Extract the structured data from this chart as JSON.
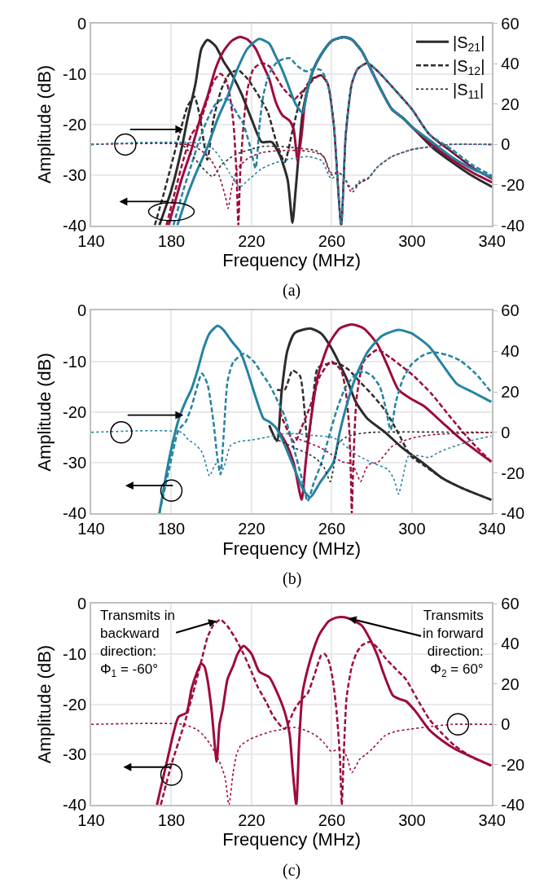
{
  "chart_data": [
    {
      "type": "line",
      "title": "(a)",
      "xlabel": "Frequency (MHz)",
      "ylabel": "Amplitude (dB)",
      "xlim": [
        140,
        340
      ],
      "xticks": [
        140,
        180,
        220,
        260,
        300,
        340
      ],
      "ylim": [
        -40,
        0
      ],
      "yticks": [
        -40,
        -30,
        -20,
        -10,
        0
      ],
      "y2lim": [
        -40,
        60
      ],
      "y2ticks": [
        -40,
        -20,
        0,
        20,
        40,
        60
      ],
      "grid": true,
      "legend": "top right",
      "series": [
        {
          "name": "|S$_{21}$|",
          "color": "#2b2b2b",
          "line_style": "solid",
          "x": [
            174,
            180,
            185,
            188,
            192,
            195,
            198,
            202,
            206,
            210,
            215,
            220,
            225,
            230,
            234,
            238,
            240.4,
            242,
            245.4,
            248,
            251,
            255,
            260,
            266,
            270,
            275,
            280,
            285,
            290,
            295.6,
            300,
            310,
            320,
            330,
            340
          ],
          "values": [
            -40,
            -33,
            -25,
            -19,
            -12,
            -5,
            -3.3,
            -4.5,
            -7.5,
            -10,
            -14,
            -19,
            -23.5,
            -23.5,
            -26,
            -31,
            -39.5,
            -33,
            -18,
            -13,
            -9,
            -6,
            -3.5,
            -2.7,
            -3.2,
            -5.5,
            -9.5,
            -13.5,
            -17,
            -18.8,
            -20.5,
            -24.5,
            -27.5,
            -30.2,
            -32.4
          ]
        },
        {
          "name": "|S$_{12}$|",
          "color": "#2b2b2b",
          "line_style": "dashed",
          "x": [
            171.7,
            176,
            180,
            184,
            188,
            191.4,
            194,
            197.9,
            201,
            205,
            209,
            213.4,
            218,
            223,
            228,
            232,
            236.5,
            240,
            243,
            245.4,
            248,
            251,
            254.7,
            258,
            261,
            264.7,
            267,
            270,
            273,
            277.8,
            283,
            290,
            300,
            308.7,
            320,
            330,
            340
          ],
          "values": [
            -40,
            -34,
            -28,
            -22,
            -16.5,
            -14.5,
            -18,
            -27,
            -19,
            -13,
            -10,
            -9.3,
            -11,
            -14,
            -17.5,
            -23,
            -27.5,
            -22,
            -17,
            -14,
            -12,
            -10.8,
            -10.3,
            -12,
            -20,
            -40,
            -22,
            -12,
            -9,
            -7.9,
            -9.5,
            -12.5,
            -17,
            -22,
            -25.5,
            -28.5,
            -30.8
          ]
        },
        {
          "name": "|S$_{11}$|",
          "color": "#2b2b2b",
          "line_style": "dotted",
          "axis": "y2",
          "x": [
            140,
            185,
            190,
            195,
            200.6,
            205,
            212,
            225,
            235,
            245,
            252,
            256,
            259.7,
            263.6,
            266,
            270,
            274,
            278,
            283,
            290,
            300,
            310,
            318.8,
            340
          ],
          "values": [
            0,
            0,
            -5,
            -11,
            -15.9,
            -10,
            -5,
            -1,
            -1,
            -2,
            -3,
            -6,
            -15,
            -14,
            -16,
            -22,
            -19,
            -17,
            -11,
            -6,
            -2.5,
            -1,
            0,
            0
          ]
        },
        {
          "color": "#9e0a3c",
          "line_style": "solid",
          "x": [
            178.6,
            185,
            190,
            195,
            198,
            202,
            206,
            210,
            214,
            218,
            222,
            226,
            228.8,
            232,
            235.4,
            239,
            241,
            243,
            245,
            246.5,
            248,
            251,
            255,
            260,
            266,
            270,
            275,
            280,
            285,
            290,
            295.6,
            300,
            310,
            320,
            330,
            340
          ],
          "values": [
            -40,
            -31,
            -25,
            -18,
            -14.5,
            -9,
            -5.5,
            -3.5,
            -2.7,
            -3.2,
            -5,
            -8.5,
            -11,
            -15.5,
            -18.2,
            -19.3,
            -21,
            -27.3,
            -22,
            -16,
            -13,
            -9,
            -6,
            -3.5,
            -2.7,
            -3.2,
            -5.5,
            -9.5,
            -13.5,
            -17,
            -18.8,
            -20.5,
            -24,
            -27,
            -29.5,
            -31.5
          ]
        },
        {
          "color": "#9e0a3c",
          "line_style": "dashed",
          "x": [
            177.5,
            182,
            186,
            190,
            194,
            198,
            201,
            204.5,
            207,
            209,
            211,
            212.5,
            213.4,
            214.3,
            216,
            218,
            221,
            225,
            228.8,
            232,
            236,
            241.5,
            244,
            248,
            251,
            254.7,
            258,
            261,
            264.7,
            267,
            270,
            273,
            277.8,
            283,
            290,
            300,
            308.7,
            320,
            330,
            340
          ],
          "values": [
            -40,
            -33,
            -27,
            -22,
            -19.8,
            -15,
            -11.5,
            -10,
            -11,
            -14,
            -20,
            -30,
            -40,
            -30,
            -20,
            -13,
            -9,
            -7.9,
            -8.5,
            -10.5,
            -13,
            -15,
            -14,
            -12.5,
            -11,
            -10.3,
            -12,
            -20,
            -40,
            -22,
            -12,
            -9,
            -7.9,
            -9.5,
            -12.5,
            -17,
            -22,
            -25.5,
            -28.5,
            -30.8
          ]
        },
        {
          "color": "#9e0a3c",
          "line_style": "dotted",
          "axis": "y2",
          "x": [
            140,
            188,
            195,
            200,
            204,
            207,
            208.3,
            210,
            213,
            218,
            225,
            235,
            245,
            252,
            256,
            259.7,
            263.6,
            266,
            270,
            274,
            278,
            283,
            290,
            300,
            310,
            318.8,
            340
          ],
          "values": [
            0,
            0,
            -3,
            -8,
            -16,
            -26,
            -31.7,
            -22,
            -12,
            -7,
            -4,
            -3,
            -3,
            -4,
            -6,
            -14,
            -14,
            -16,
            -23.8,
            -19,
            -17,
            -11,
            -6,
            -2.5,
            -1,
            0,
            0
          ]
        },
        {
          "color": "#2483a0",
          "line_style": "solid",
          "x": [
            183,
            188,
            193,
            198,
            203,
            208,
            213,
            218,
            223.8,
            228.8,
            232,
            235.4,
            239,
            242,
            245.4,
            248,
            251,
            255,
            260,
            266,
            270,
            275,
            280,
            285,
            290,
            295.6,
            300,
            310,
            320,
            330,
            340
          ],
          "values": [
            -40,
            -34,
            -29,
            -24.5,
            -19,
            -14.5,
            -9,
            -5,
            -3.1,
            -4,
            -6.5,
            -9.3,
            -13,
            -16,
            -17.7,
            -13,
            -9,
            -6,
            -3.5,
            -2.7,
            -3.2,
            -5.5,
            -9.5,
            -13.5,
            -17,
            -18.8,
            -20.5,
            -23.5,
            -26.5,
            -28.8,
            -30.5
          ]
        },
        {
          "color": "#2483a0",
          "line_style": "dashed",
          "x": [
            181,
            186,
            190,
            194,
            198,
            202,
            205.6,
            208,
            210,
            213,
            216,
            219,
            222,
            224,
            226,
            228.8,
            232,
            235,
            239,
            243,
            247,
            251,
            254.7,
            258,
            261,
            264.7,
            267,
            270,
            273,
            277.8,
            283,
            290,
            300,
            308.7,
            320,
            330,
            340
          ],
          "values": [
            -40,
            -33,
            -28,
            -23,
            -19,
            -16,
            -15,
            -15,
            -16,
            -18,
            -20,
            -24,
            -28.7,
            -20,
            -14,
            -10,
            -8,
            -7.2,
            -6.9,
            -8.5,
            -9.5,
            -9,
            -9.3,
            -12,
            -20,
            -40,
            -22,
            -12,
            -9,
            -7.9,
            -9.5,
            -12.5,
            -17,
            -22,
            -25,
            -28,
            -30.2
          ]
        },
        {
          "color": "#2483a0",
          "line_style": "dotted",
          "axis": "y2",
          "x": [
            140,
            198,
            204,
            209,
            214,
            219,
            225,
            232,
            240,
            248,
            255,
            259.7,
            263.6,
            266,
            270,
            274,
            278,
            283,
            290,
            300,
            310,
            318.8,
            340
          ],
          "values": [
            0,
            0,
            -6,
            -14,
            -21,
            -17,
            -12,
            -9,
            -7,
            -6,
            -8,
            -17,
            -14,
            -16,
            -22,
            -18,
            -16.5,
            -11,
            -6,
            -2.5,
            -1,
            0,
            0
          ]
        }
      ]
    },
    {
      "type": "line",
      "title": "(b)",
      "xlabel": "Frequency (MHz)",
      "ylabel": "Amplitude (dB)",
      "xlim": [
        140,
        340
      ],
      "xticks": [
        140,
        180,
        220,
        260,
        300,
        340
      ],
      "ylim": [
        -40,
        0
      ],
      "yticks": [
        -40,
        -30,
        -20,
        -10,
        0
      ],
      "y2lim": [
        -40,
        60
      ],
      "y2ticks": [
        -40,
        -20,
        0,
        20,
        40,
        60
      ],
      "grid": true,
      "series": [
        {
          "color": "#2b2b2b",
          "line_style": "solid",
          "x": [
            228.8,
            232.7,
            235,
            237.8,
            241.5,
            249.3,
            254.7,
            260,
            267.4,
            272,
            277.8,
            286.7,
            295,
            306,
            315,
            325,
            339.6
          ],
          "values": [
            -22.6,
            -25.7,
            -16,
            -8,
            -4.4,
            -3.5,
            -4.5,
            -7.5,
            -13.4,
            -18,
            -21.3,
            -24,
            -27,
            -30.2,
            -33,
            -35,
            -37.3
          ]
        },
        {
          "color": "#2b2b2b",
          "line_style": "dashed",
          "x": [
            232.7,
            236.5,
            240.4,
            244.2,
            248,
            250.5,
            253,
            258,
            263.6,
            268,
            274,
            280,
            286.7,
            293,
            299.5,
            306,
            315,
            325,
            339.6
          ],
          "values": [
            -15.6,
            -15.6,
            -11.8,
            -12.9,
            -26.2,
            -18,
            -11.3,
            -10.5,
            -10.5,
            -11.5,
            -14,
            -16.5,
            -19.7,
            -24,
            -28.7,
            -30.5,
            -33,
            -35,
            -37.3
          ]
        },
        {
          "color": "#2b2b2b",
          "line_style": "dotted",
          "axis": "y2",
          "x": [
            231,
            236,
            241.5,
            247,
            252,
            256,
            259.3,
            261.5,
            263.6,
            267,
            271.4,
            280,
            340
          ],
          "values": [
            -3,
            -5,
            -7.7,
            -10,
            -12.8,
            -17,
            -24.3,
            -14,
            -5,
            -2.5,
            -1,
            0,
            0
          ]
        },
        {
          "color": "#9e0a3c",
          "line_style": "solid",
          "x": [
            233,
            237,
            241,
            245,
            247,
            249.3,
            253,
            258.5,
            264,
            270,
            276,
            282.8,
            288,
            293.3,
            300,
            306,
            315,
            325,
            339.6
          ],
          "values": [
            -23.5,
            -26,
            -30,
            -37.3,
            -30,
            -22.4,
            -13,
            -6.6,
            -3.5,
            -2.7,
            -3.5,
            -6.6,
            -11,
            -15.6,
            -17.5,
            -18.8,
            -22,
            -25.5,
            -29.8
          ]
        },
        {
          "color": "#9e0a3c",
          "line_style": "dashed",
          "x": [
            234,
            241.5,
            245,
            249.3,
            254,
            259.7,
            264.7,
            267,
            268.6,
            269.5,
            270,
            270.8,
            272.4,
            276,
            282.8,
            289.4,
            295,
            301,
            310,
            318.8,
            330,
            339.6
          ],
          "values": [
            -20,
            -26,
            -23,
            -18.8,
            -13,
            -10,
            -11.8,
            -16,
            -22.4,
            -32,
            -40,
            -30,
            -17.3,
            -10,
            -7.7,
            -9.3,
            -11,
            -12.9,
            -16.5,
            -20.8,
            -26,
            -29.8
          ]
        },
        {
          "color": "#9e0a3c",
          "line_style": "dotted",
          "axis": "y2",
          "x": [
            241.5,
            248,
            254.7,
            260,
            264.7,
            270,
            272,
            274.4,
            277,
            279,
            283,
            290.6,
            301,
            312,
            340
          ],
          "values": [
            -2.6,
            -5,
            -7.7,
            -11,
            -14.4,
            -15.6,
            -19,
            -24.3,
            -18,
            -15.6,
            -14.8,
            -6.5,
            -2.6,
            -1,
            0
          ]
        },
        {
          "color": "#2483a0",
          "line_style": "solid",
          "x": [
            174,
            179,
            183.6,
            187,
            190,
            193,
            196,
            199,
            203,
            206,
            210,
            214.5,
            218,
            222,
            226,
            228.8,
            232,
            236,
            241.5,
            246,
            249.3,
            254,
            260.8,
            264,
            267.4,
            272,
            277.8,
            285,
            293.3,
            300,
            308.7,
            315,
            322.6,
            330,
            339.6
          ],
          "values": [
            -40,
            -29,
            -21.5,
            -18,
            -15.5,
            -11.8,
            -7.5,
            -4.5,
            -3,
            -3.8,
            -6,
            -8.2,
            -12,
            -17,
            -21.3,
            -21.9,
            -23,
            -26,
            -31.3,
            -35.5,
            -36.8,
            -34,
            -30,
            -24,
            -18.7,
            -13,
            -8.2,
            -5,
            -3.8,
            -4.5,
            -7.1,
            -10.5,
            -14.5,
            -16,
            -18
          ]
        },
        {
          "color": "#2483a0",
          "line_style": "dashed",
          "x": [
            174,
            179,
            183.6,
            187,
            190,
            195.2,
            198,
            201,
            203,
            204.5,
            206,
            208,
            210.8,
            216.1,
            221,
            226,
            228.8,
            232,
            236.5,
            241,
            245,
            248,
            251,
            254.7,
            262.4,
            267,
            272.4,
            276,
            280.2,
            284,
            286.7,
            289.4,
            292,
            295.6,
            300,
            306,
            311,
            318,
            324,
            332,
            339.6
          ],
          "values": [
            -40,
            -31,
            -23.5,
            -22,
            -19,
            -12.4,
            -14.5,
            -22,
            -29.2,
            -32.3,
            -25,
            -14,
            -10.2,
            -8.5,
            -10,
            -12.9,
            -14.5,
            -17,
            -20.8,
            -27,
            -33,
            -37.6,
            -34,
            -30.2,
            -19.7,
            -15,
            -12.4,
            -12,
            -12.9,
            -15,
            -18.8,
            -23.5,
            -18,
            -13.4,
            -10.5,
            -8.7,
            -8.2,
            -8.8,
            -9.8,
            -12.5,
            -16.1
          ]
        },
        {
          "color": "#2483a0",
          "line_style": "dotted",
          "axis": "y2",
          "x": [
            140,
            185,
            188.6,
            192,
            195.2,
            197,
            199,
            202.2,
            205.6,
            209.5,
            214,
            219.6,
            227,
            235,
            241.5,
            250,
            260.8,
            266,
            271.4,
            276,
            281.7,
            288,
            291,
            293.3,
            295.5,
            298.3,
            303,
            308.7,
            313,
            318.8,
            330,
            339.6
          ],
          "values": [
            0,
            0,
            -3.8,
            -6,
            -9.7,
            -15,
            -21.5,
            -15.6,
            -18.3,
            -6.5,
            -4.5,
            -3.8,
            -2.5,
            -0.8,
            -0.6,
            -1.5,
            -2.6,
            -6,
            -10.5,
            -13,
            -15.6,
            -18.3,
            -23,
            -30.5,
            -22,
            -11.7,
            -11.5,
            -12.4,
            -10,
            -7.7,
            -4,
            -1.8
          ]
        }
      ]
    },
    {
      "type": "line",
      "title": "(c)",
      "xlabel": "Frequency (MHz)",
      "ylabel": "Amplitude (dB)",
      "xlim": [
        140,
        340
      ],
      "xticks": [
        140,
        180,
        220,
        260,
        300,
        340
      ],
      "ylim": [
        -40,
        0
      ],
      "yticks": [
        -40,
        -30,
        -20,
        -10,
        0
      ],
      "y2lim": [
        -40,
        60
      ],
      "y2ticks": [
        -40,
        -20,
        0,
        20,
        40,
        60
      ],
      "grid": true,
      "annotations": [
        {
          "text": "Transmits in\nbackward\ndirection:\nΦ$_{1}$ = -60°",
          "x": 204.5,
          "y": -3.2
        },
        {
          "text": "Transmits\nin forward\ndirection:\nΦ$_{2}$ = 60°",
          "x": 266.3,
          "y": -2.7
        }
      ],
      "series": [
        {
          "color": "#9e0a3c",
          "line_style": "solid",
          "x": [
            172.8,
            178,
            183.6,
            187.5,
            190,
            192.9,
            194.8,
            196.5,
            198,
            200,
            202.6,
            204,
            205.6,
            208,
            210.8,
            213,
            216,
            220,
            223.8,
            228.8,
            232,
            236.5,
            239,
            240.5,
            242.3,
            243.8,
            245.4,
            248,
            250.8,
            254,
            258.5,
            262,
            266.3,
            270,
            275.1,
            279,
            282.8,
            286,
            290.6,
            294,
            297.1,
            302,
            308.7,
            315,
            321.5,
            330,
            339.6
          ],
          "values": [
            -40,
            -31,
            -22.5,
            -21.7,
            -17,
            -13.5,
            -11.9,
            -12.5,
            -15.1,
            -21,
            -31.4,
            -24,
            -21,
            -15,
            -12.4,
            -10,
            -8.4,
            -10,
            -13.5,
            -14.6,
            -17,
            -21.5,
            -26,
            -33,
            -40,
            -27,
            -17.8,
            -13,
            -9.2,
            -6,
            -3.5,
            -2.8,
            -2.7,
            -3.2,
            -4.4,
            -7,
            -10.3,
            -14,
            -18.3,
            -19,
            -19.4,
            -21.5,
            -25.1,
            -27.2,
            -28.9,
            -30.5,
            -32.2
          ]
        },
        {
          "color": "#9e0a3c",
          "line_style": "dashed",
          "x": [
            174.7,
            180,
            186.3,
            190,
            192.9,
            195.5,
            198,
            201,
            204.5,
            208,
            212.2,
            216,
            219.9,
            223,
            227.6,
            231,
            236.5,
            241.5,
            245,
            248,
            251.5,
            254.7,
            256.5,
            258.5,
            260.5,
            262.4,
            264,
            265,
            266,
            267.4,
            270,
            272.4,
            275,
            279,
            283,
            286.7,
            292,
            297.1,
            302,
            308.7,
            315,
            321.5,
            330,
            339.6
          ],
          "values": [
            -40,
            -32,
            -24.1,
            -19,
            -14.6,
            -10.5,
            -6.7,
            -4.2,
            -3.2,
            -4.5,
            -7.1,
            -10,
            -13.5,
            -16.5,
            -19.8,
            -22.5,
            -24.9,
            -21,
            -19,
            -17.8,
            -14,
            -10.3,
            -10,
            -11.4,
            -15,
            -21.4,
            -30,
            -40,
            -30,
            -18.7,
            -12.5,
            -9.8,
            -8.3,
            -7.6,
            -8.8,
            -10.8,
            -13,
            -15.1,
            -18.5,
            -23,
            -25.8,
            -28.3,
            -30.5,
            -32.2
          ]
        },
        {
          "color": "#9e0a3c",
          "line_style": "dotted",
          "axis": "y2",
          "x": [
            140,
            186,
            192.9,
            196,
            199,
            202.9,
            205,
            206.8,
            208.7,
            210.8,
            212.5,
            214.5,
            219,
            223.8,
            230,
            236.5,
            241.5,
            247,
            252,
            256,
            259.7,
            264.7,
            267.5,
            270,
            273.9,
            277,
            280.2,
            286.7,
            292,
            299.5,
            310,
            320,
            340
          ],
          "values": [
            0,
            0,
            -2.7,
            -5.5,
            -9.4,
            -16.1,
            -21,
            -26.5,
            -40,
            -24,
            -15,
            -10.6,
            -7.5,
            -5.5,
            -3.5,
            -2.3,
            -1.5,
            -3,
            -5.5,
            -9,
            -13.4,
            -12.2,
            -16,
            -24,
            -17.4,
            -15,
            -12.2,
            -5.5,
            -3.5,
            -2.3,
            -1,
            0,
            0
          ]
        }
      ]
    }
  ]
}
